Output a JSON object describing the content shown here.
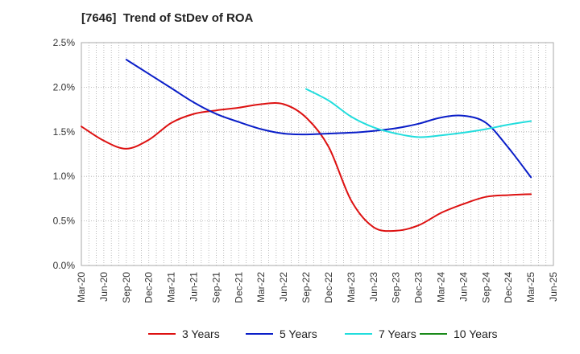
{
  "chart_data": {
    "type": "line",
    "title": "[7646]  Trend of StDev of ROA",
    "xlabel": "",
    "ylabel": "",
    "x_ticks": [
      "Mar-20",
      "Jun-20",
      "Sep-20",
      "Dec-20",
      "Mar-21",
      "Jun-21",
      "Sep-21",
      "Dec-21",
      "Mar-22",
      "Jun-22",
      "Sep-22",
      "Dec-22",
      "Mar-23",
      "Jun-23",
      "Sep-23",
      "Dec-23",
      "Mar-24",
      "Jun-24",
      "Sep-24",
      "Dec-24",
      "Mar-25",
      "Jun-25"
    ],
    "y_ticks": [
      "0.0%",
      "0.5%",
      "1.0%",
      "1.5%",
      "2.0%",
      "2.5%"
    ],
    "ylim": [
      0,
      2.5
    ],
    "grid": "dotted",
    "legend_position": "bottom",
    "series": [
      {
        "name": "3 Years",
        "color": "#dd1111",
        "x": [
          "Mar-20",
          "Jun-20",
          "Sep-20",
          "Dec-20",
          "Mar-21",
          "Jun-21",
          "Sep-21",
          "Dec-21",
          "Mar-22",
          "Jun-22",
          "Sep-22",
          "Dec-22",
          "Mar-23",
          "Jun-23",
          "Sep-23",
          "Dec-23",
          "Mar-24",
          "Jun-24",
          "Sep-24",
          "Dec-24",
          "Mar-25"
        ],
        "values": [
          1.56,
          1.4,
          1.31,
          1.41,
          1.6,
          1.7,
          1.74,
          1.77,
          1.81,
          1.81,
          1.66,
          1.33,
          0.73,
          0.43,
          0.39,
          0.45,
          0.59,
          0.69,
          0.77,
          0.79,
          0.8
        ]
      },
      {
        "name": "5 Years",
        "color": "#0a1ec8",
        "x": [
          "Sep-20",
          "Dec-20",
          "Mar-21",
          "Jun-21",
          "Sep-21",
          "Dec-21",
          "Mar-22",
          "Jun-22",
          "Sep-22",
          "Dec-22",
          "Mar-23",
          "Jun-23",
          "Sep-23",
          "Dec-23",
          "Mar-24",
          "Jun-24",
          "Sep-24",
          "Dec-24",
          "Mar-25"
        ],
        "values": [
          2.31,
          2.15,
          1.99,
          1.83,
          1.7,
          1.61,
          1.53,
          1.48,
          1.47,
          1.48,
          1.49,
          1.51,
          1.54,
          1.59,
          1.66,
          1.68,
          1.6,
          1.32,
          0.99
        ]
      },
      {
        "name": "7 Years",
        "color": "#22dddd",
        "x": [
          "Sep-22",
          "Dec-22",
          "Mar-23",
          "Jun-23",
          "Sep-23",
          "Dec-23",
          "Mar-24",
          "Jun-24",
          "Sep-24",
          "Dec-24",
          "Mar-25"
        ],
        "values": [
          1.98,
          1.85,
          1.67,
          1.55,
          1.48,
          1.44,
          1.46,
          1.49,
          1.53,
          1.58,
          1.62
        ]
      },
      {
        "name": "10 Years",
        "color": "#1a8a1a",
        "x": [],
        "values": []
      }
    ]
  }
}
